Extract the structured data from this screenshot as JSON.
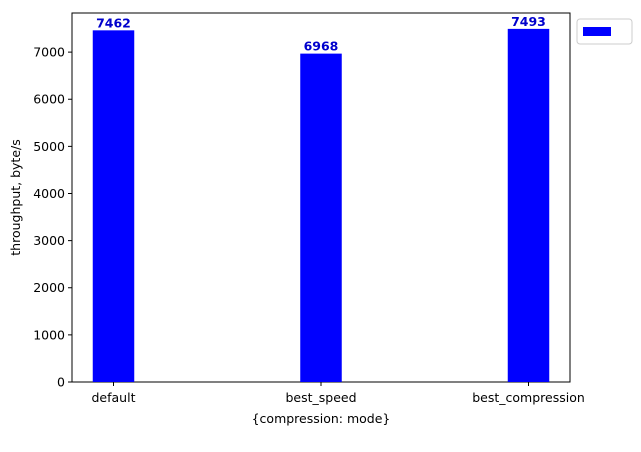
{
  "chart_data": {
    "type": "bar",
    "title": "",
    "xlabel": "{compression: mode}",
    "ylabel": "throughput, byte/s",
    "categories": [
      "default",
      "best_speed",
      "best_compression"
    ],
    "series": [
      {
        "name": "",
        "values": [
          7462,
          6968,
          7493
        ]
      }
    ],
    "data_labels": [
      "7462",
      "6968",
      "7493"
    ],
    "ylim": [
      0,
      7830
    ],
    "yticks": [
      0,
      1000,
      2000,
      3000,
      4000,
      5000,
      6000,
      7000
    ],
    "ytick_labels": [
      "0",
      "1000",
      "2000",
      "3000",
      "4000",
      "5000",
      "6000",
      "7000"
    ],
    "grid": false,
    "legend": {
      "placement": "outside-top-right",
      "entries": [
        ""
      ]
    },
    "colors": {
      "bar": "#0000ff",
      "label": "#0000cc",
      "axis": "#000000"
    }
  }
}
